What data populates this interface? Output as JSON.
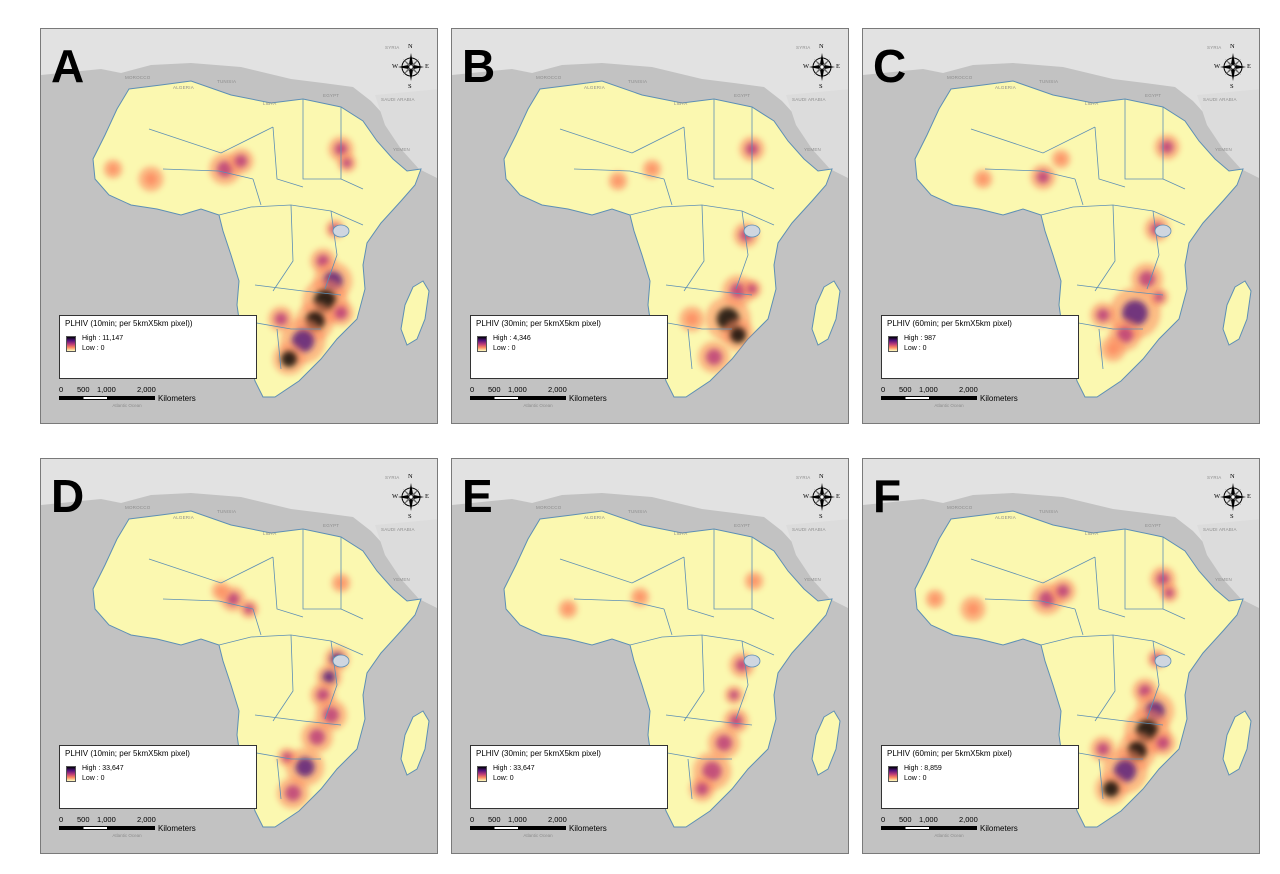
{
  "panels": [
    {
      "letter": "A",
      "legend_title": "PLHIV (10min; per 5kmX5km pixel))",
      "high": "High : 11,147",
      "low": "Low : 0",
      "hotspots": "southeast"
    },
    {
      "letter": "B",
      "legend_title": "PLHIV (30min; per 5kmX5km pixel)",
      "high": "High : 4,346",
      "low": "Low : 0",
      "hotspots": "mozambique"
    },
    {
      "letter": "C",
      "legend_title": "PLHIV (60min; per 5kmX5km pixel)",
      "high": "High : 987",
      "low": "Low : 0",
      "hotspots": "scattered"
    },
    {
      "letter": "D",
      "legend_title": "PLHIV (10min; per 5kmX5km pixel)",
      "high": "High : 33,647",
      "low": "Low : 0",
      "hotspots": "lakes"
    },
    {
      "letter": "E",
      "legend_title": "PLHIV (30min; per 5kmX5km pixel)",
      "high": "High : 33,647",
      "low": "Low: 0",
      "hotspots": "light"
    },
    {
      "letter": "F",
      "legend_title": "PLHIV (60min; per 5kmX5km pixel)",
      "high": "High : 8,859",
      "low": "Low : 0",
      "hotspots": "southeast"
    }
  ],
  "scale": {
    "ticks": [
      "0",
      "500",
      "1,000",
      "2,000"
    ],
    "unit": "Kilometers"
  },
  "compass": {
    "n": "N",
    "s": "S",
    "e": "E",
    "w": "W"
  },
  "map_labels": {
    "countries": [
      "TUNISIA",
      "MOROCCO",
      "ALGERIA",
      "LIBYA",
      "EGYPT",
      "SYRIA",
      "SAUDI ARABIA",
      "YEMEN"
    ],
    "ocean": "Atlantic Ocean"
  },
  "colors": {
    "land": "#fbf8b0",
    "sea": "#c2c2c2",
    "non_africa": "#e2e2e2",
    "border": "#5d8fb5",
    "ramp": [
      "#000004",
      "#51127c",
      "#b73779",
      "#fc8961",
      "#fcfdbf"
    ]
  }
}
